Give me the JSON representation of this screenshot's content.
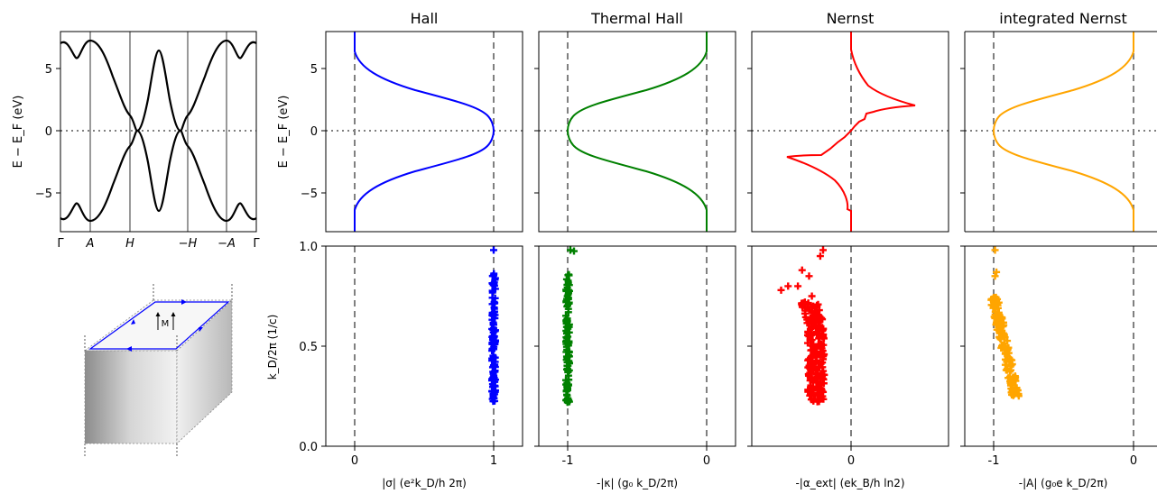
{
  "colors": {
    "hall": "#0000ff",
    "thermal": "#008000",
    "nernst": "#ff0000",
    "integrated": "#ffa500",
    "band": "#000000",
    "guide": "#808080"
  },
  "band_panel": {
    "ylabel": "E − E_F (eV)",
    "yticks": [
      "5",
      "0",
      "−5"
    ],
    "kpoints": [
      "Γ",
      "A",
      "H",
      "−H",
      "−A",
      "Γ"
    ]
  },
  "top_titles": [
    "Hall",
    "Thermal Hall",
    "Nernst",
    "integrated Nernst"
  ],
  "top_ylabel": "E − E_F (eV)",
  "top_yticks": [
    "5",
    "0",
    "−5"
  ],
  "bottom_ylabel": "k_D/2π (1/c)",
  "bottom_yticks": [
    "1.0",
    "0.5",
    "0.0"
  ],
  "xlabels": [
    "|σ| (e²k_D/h 2π)",
    "-|κ| (g₀ k_D/2π)",
    "-|α_ext| (ek_B/h ln2)",
    "-|A| (g₀e k_D/2π)"
  ],
  "xticks": [
    [
      "0",
      "1"
    ],
    [
      "-1",
      "0"
    ],
    [
      "0"
    ],
    [
      "-1",
      "0"
    ]
  ],
  "inset": {
    "label": "M"
  },
  "chart_data": [
    {
      "type": "line",
      "title": "",
      "series": [
        {
          "name": "",
          "x": [
            0,
            0.5,
            1,
            1.5,
            2,
            2.5,
            3,
            3.5,
            4,
            4.5,
            5
          ],
          "y": [
            7.3,
            6.0,
            7.3,
            4.5,
            1.0,
            6.6,
            4.0,
            0,
            4.0,
            6.6,
            1.0
          ]
        }
      ],
      "xlabel": "",
      "ylabel": "E − E_F (eV)",
      "ylim": [
        -8,
        8
      ],
      "note": "band structure along Γ–A–H–(−H)–(−A)–Γ"
    },
    {
      "type": "line",
      "title": "Hall",
      "series": [
        {
          "name": "",
          "x": [
            0.0,
            0.02,
            0.15,
            0.5,
            0.85,
            0.98,
            1.0
          ],
          "y": [
            6.5,
            5.0,
            3.5,
            2.2,
            1.2,
            0.3,
            0.0
          ]
        }
      ],
      "xlabel": "|σ|",
      "ylabel": "E − E_F (eV)",
      "ylim": [
        -8,
        8
      ],
      "xlim": [
        -0.2,
        1.2
      ]
    },
    {
      "type": "line",
      "title": "Thermal Hall",
      "series": [
        {
          "name": "",
          "x": [
            0.0,
            -0.02,
            -0.15,
            -0.5,
            -0.85,
            -0.98,
            -1.0
          ],
          "y": [
            6.5,
            5.0,
            3.5,
            2.2,
            1.2,
            0.3,
            0.0
          ]
        }
      ],
      "xlabel": "-|κ|",
      "ylabel": "",
      "ylim": [
        -8,
        8
      ],
      "xlim": [
        -1.2,
        0.2
      ]
    },
    {
      "type": "line",
      "title": "Nernst",
      "series": [
        {
          "name": "",
          "x": [
            0.0,
            0.0,
            0.08,
            0.2,
            0.4,
            0.2,
            -0.05,
            -0.2,
            -0.45,
            -0.2,
            -0.05,
            0.0
          ],
          "y": [
            8,
            6.5,
            3.5,
            2.5,
            2.0,
            1.6,
            0.3,
            -1.2,
            -2.0,
            -2.8,
            -6.3,
            -8
          ]
        }
      ],
      "xlabel": "-|α_ext|",
      "ylabel": "",
      "ylim": [
        -8,
        8
      ],
      "xlim": [
        -1.0,
        0.55
      ]
    },
    {
      "type": "line",
      "title": "integrated Nernst",
      "series": [
        {
          "name": "",
          "x": [
            0.0,
            -0.02,
            -0.15,
            -0.5,
            -0.85,
            -0.98,
            -1.0
          ],
          "y": [
            6.5,
            5.0,
            3.5,
            2.2,
            1.2,
            0.3,
            0.0
          ]
        }
      ],
      "xlabel": "-|A|",
      "ylabel": "",
      "ylim": [
        -8,
        8
      ],
      "xlim": [
        -1.2,
        0.05
      ]
    },
    {
      "type": "scatter",
      "title": "",
      "series": [
        {
          "name": "",
          "x": [
            1.0,
            1.0,
            1.0,
            1.0,
            1.0
          ],
          "y": [
            0.25,
            0.4,
            0.55,
            0.7,
            0.85
          ]
        }
      ],
      "xlabel": "|σ|",
      "ylabel": "k_D/2π",
      "ylim": [
        0,
        1
      ]
    },
    {
      "type": "scatter",
      "title": "",
      "series": [
        {
          "name": "",
          "x": [
            -1.0,
            -1.0,
            -1.0,
            -1.0,
            -1.0
          ],
          "y": [
            0.25,
            0.4,
            0.55,
            0.7,
            0.85
          ]
        }
      ],
      "xlabel": "-|κ|",
      "ylabel": "",
      "ylim": [
        0,
        1
      ]
    },
    {
      "type": "scatter",
      "title": "",
      "series": [
        {
          "name": "",
          "x": [
            -0.25,
            -0.27,
            -0.3,
            -0.35,
            -0.5
          ],
          "y": [
            0.3,
            0.45,
            0.6,
            0.7,
            0.8
          ]
        }
      ],
      "xlabel": "-|α_ext|",
      "ylabel": "",
      "ylim": [
        0,
        1
      ]
    },
    {
      "type": "scatter",
      "title": "",
      "series": [
        {
          "name": "",
          "x": [
            -0.85,
            -0.88,
            -0.93,
            -0.97,
            -1.0
          ],
          "y": [
            0.25,
            0.35,
            0.5,
            0.7,
            0.95
          ]
        }
      ],
      "xlabel": "-|A|",
      "ylabel": "",
      "ylim": [
        0,
        1
      ]
    }
  ]
}
